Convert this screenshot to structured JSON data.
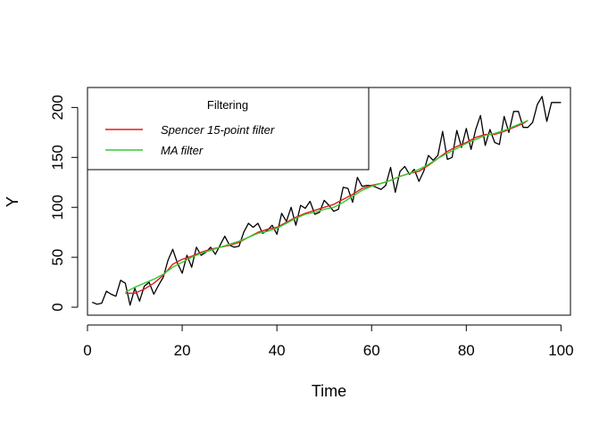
{
  "chart_data": {
    "type": "line",
    "title": "",
    "xlabel": "Time",
    "ylabel": "Y",
    "xlim": [
      0,
      102
    ],
    "ylim": [
      -8,
      220
    ],
    "xticks": [
      0,
      20,
      40,
      60,
      80,
      100
    ],
    "yticks": [
      0,
      50,
      100,
      150,
      200
    ],
    "grid": false,
    "legend": {
      "title": "Filtering",
      "placement": "top-left",
      "entries": [
        {
          "label": "Spencer 15-point filter",
          "color": "#e41a1c"
        },
        {
          "label": "MA filter",
          "color": "#33cc33"
        }
      ]
    },
    "series": [
      {
        "color": "#000000",
        "x": [
          1,
          2,
          3,
          4,
          5,
          6,
          7,
          8,
          9,
          10,
          11,
          12,
          13,
          14,
          15,
          16,
          17,
          18,
          19,
          20,
          21,
          22,
          23,
          24,
          25,
          26,
          27,
          28,
          29,
          30,
          31,
          32,
          33,
          34,
          35,
          36,
          37,
          38,
          39,
          40,
          41,
          42,
          43,
          44,
          45,
          46,
          47,
          48,
          49,
          50,
          51,
          52,
          53,
          54,
          55,
          56,
          57,
          58,
          59,
          60,
          61,
          62,
          63,
          64,
          65,
          66,
          67,
          68,
          69,
          70,
          71,
          72,
          73,
          74,
          75,
          76,
          77,
          78,
          79,
          80,
          81,
          82,
          83,
          84,
          85,
          86,
          87,
          88,
          89,
          90,
          91,
          92,
          93,
          94,
          95,
          96,
          97,
          98,
          99,
          100
        ],
        "y": [
          5,
          3,
          4,
          16,
          13,
          11,
          27,
          24,
          2,
          19,
          6,
          21,
          25,
          13,
          22,
          30,
          47,
          58,
          44,
          34,
          52,
          40,
          60,
          52,
          55,
          60,
          53,
          62,
          71,
          62,
          60,
          61,
          75,
          84,
          80,
          84,
          74,
          77,
          82,
          73,
          94,
          86,
          100,
          82,
          102,
          99,
          106,
          93,
          95,
          107,
          102,
          96,
          98,
          120,
          119,
          105,
          130,
          121,
          122,
          122,
          120,
          118,
          122,
          140,
          115,
          136,
          141,
          133,
          138,
          126,
          136,
          152,
          147,
          152,
          176,
          148,
          150,
          177,
          160,
          179,
          158,
          178,
          192,
          162,
          178,
          165,
          163,
          191,
          175,
          196,
          196,
          180,
          180,
          185,
          203,
          211,
          186,
          205,
          205,
          205
        ]
      },
      {
        "name": "Spencer 15-point filter",
        "color": "#e41a1c",
        "x": [
          8,
          10,
          12,
          14,
          16,
          18,
          20,
          22,
          24,
          26,
          28,
          30,
          32,
          34,
          36,
          38,
          40,
          42,
          44,
          46,
          48,
          50,
          52,
          54,
          56,
          58,
          60,
          62,
          64,
          66,
          68,
          70,
          72,
          74,
          76,
          78,
          80,
          82,
          84,
          86,
          88,
          90,
          92,
          93
        ],
        "y": [
          14,
          14,
          18,
          24,
          32,
          43,
          48,
          51,
          55,
          58,
          60,
          62,
          65,
          70,
          75,
          78,
          80,
          85,
          90,
          94,
          97,
          100,
          103,
          108,
          113,
          119,
          122,
          124,
          127,
          131,
          134,
          136,
          142,
          149,
          156,
          161,
          165,
          170,
          173,
          173,
          176,
          180,
          184,
          187
        ]
      },
      {
        "name": "MA filter",
        "color": "#33cc33",
        "x": [
          8,
          10,
          12,
          14,
          16,
          18,
          20,
          22,
          24,
          26,
          28,
          30,
          32,
          34,
          36,
          38,
          40,
          42,
          44,
          46,
          48,
          50,
          52,
          54,
          56,
          58,
          60,
          62,
          64,
          66,
          68,
          70,
          72,
          74,
          76,
          78,
          80,
          82,
          84,
          86,
          88,
          90,
          92,
          93
        ],
        "y": [
          15,
          20,
          24,
          28,
          33,
          40,
          45,
          50,
          54,
          57,
          60,
          63,
          66,
          70,
          74,
          76,
          79,
          84,
          89,
          93,
          95,
          98,
          100,
          105,
          111,
          117,
          121,
          124,
          127,
          131,
          134,
          138,
          143,
          149,
          154,
          159,
          164,
          168,
          172,
          174,
          177,
          181,
          185,
          187
        ]
      }
    ]
  }
}
